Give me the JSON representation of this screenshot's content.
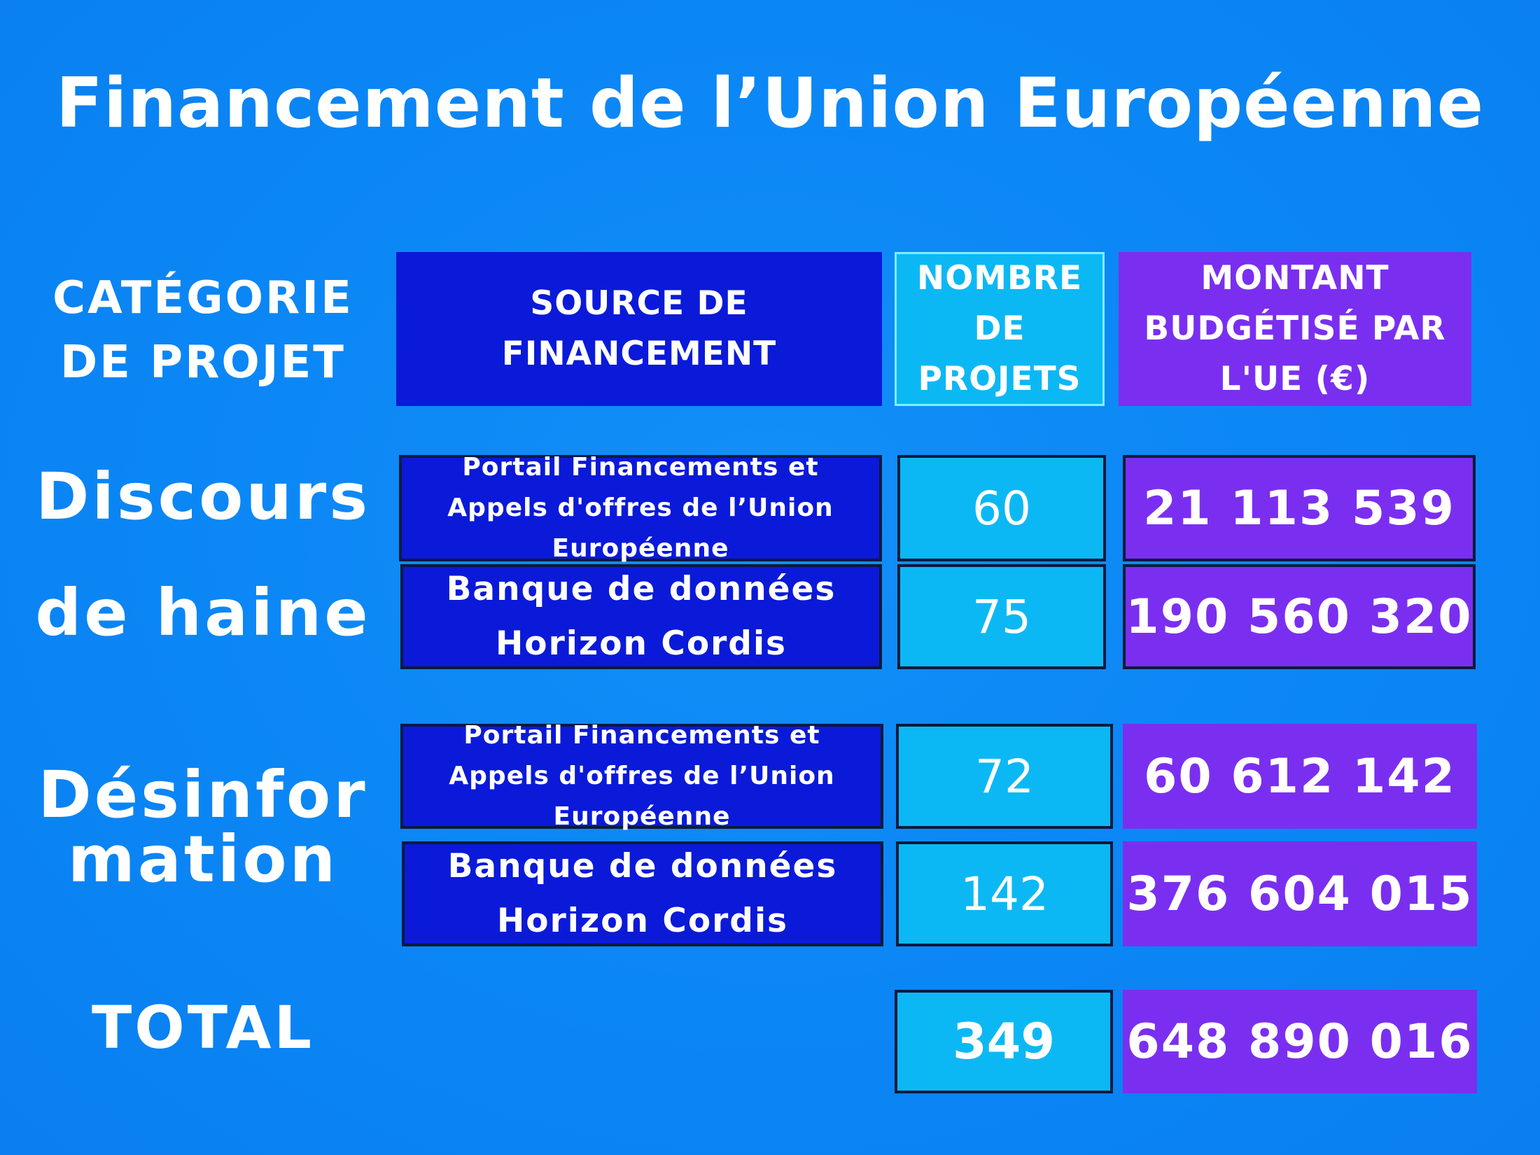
{
  "title": "Financement de l’Union Européenne",
  "chart_data": {
    "type": "table",
    "title": "Financement de l’Union Européenne",
    "columns": [
      "CATÉGORIE DE PROJET",
      "SOURCE DE FINANCEMENT",
      "NOMBRE DE PROJETS",
      "MONTANT BUDGÉTISÉ PAR L'UE (€)"
    ],
    "header": {
      "category_line1": "CATÉGORIE",
      "category_line2": "DE PROJET",
      "source": "SOURCE DE FINANCEMENT",
      "count": "NOMBRE DE PROJETS",
      "amount": "MONTANT BUDGÉTISÉ PAR L'UE (€)"
    },
    "groups": [
      {
        "category_line1": "Discours",
        "category_line2": "de haine",
        "rows": [
          {
            "source": "Portail Financements et Appels d'offres de l’Union Européenne",
            "count": "60",
            "amount": "21 113 539"
          },
          {
            "source": "Banque de données Horizon Cordis",
            "count": "75",
            "amount": "190 560 320"
          }
        ]
      },
      {
        "category_line1": "Désinfor",
        "category_line2": "mation",
        "rows": [
          {
            "source": "Portail Financements et Appels d'offres de l’Union Européenne",
            "count": "72",
            "amount": "60 612 142"
          },
          {
            "source": "Banque de données Horizon Cordis",
            "count": "142",
            "amount": "376 604 015"
          }
        ]
      }
    ],
    "total": {
      "label": "TOTAL",
      "count": "349",
      "amount": "648 890 016"
    }
  }
}
